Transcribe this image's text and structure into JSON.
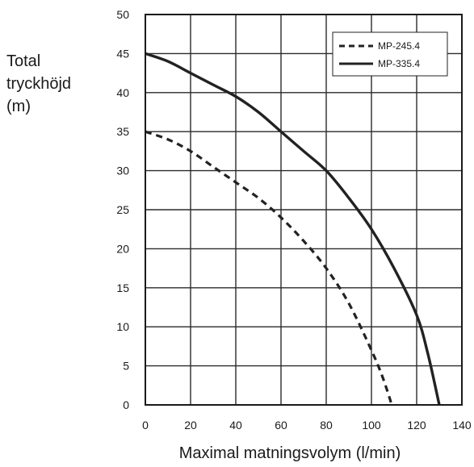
{
  "chart_data": {
    "type": "line",
    "title": "",
    "ylabel_lines": [
      "Total",
      "tryckhöjd",
      "(m)"
    ],
    "xlabel": "Maximal matningsvolym (l/min)",
    "xlim": [
      0,
      140
    ],
    "ylim": [
      0,
      50
    ],
    "xticks": [
      0,
      20,
      40,
      60,
      80,
      100,
      120,
      140
    ],
    "yticks": [
      0,
      5,
      10,
      15,
      20,
      25,
      30,
      35,
      40,
      45,
      50
    ],
    "grid": true,
    "legend_position": "top-right",
    "series": [
      {
        "name": "MP-245.4",
        "style": "dashed",
        "color": "#222222",
        "x": [
          0,
          10,
          20,
          30,
          40,
          50,
          60,
          70,
          80,
          90,
          100,
          105,
          109
        ],
        "y": [
          35,
          34,
          32.5,
          30.5,
          28.5,
          26.5,
          24,
          21,
          17.5,
          13,
          7,
          3.5,
          0
        ]
      },
      {
        "name": "MP-335.4",
        "style": "solid",
        "color": "#222222",
        "x": [
          0,
          10,
          20,
          30,
          40,
          50,
          60,
          70,
          80,
          90,
          100,
          110,
          120,
          125,
          130
        ],
        "y": [
          45,
          44,
          42.5,
          41,
          39.5,
          37.5,
          35,
          32.5,
          30,
          26.5,
          22.5,
          17.5,
          11.5,
          6.5,
          0
        ]
      }
    ]
  }
}
